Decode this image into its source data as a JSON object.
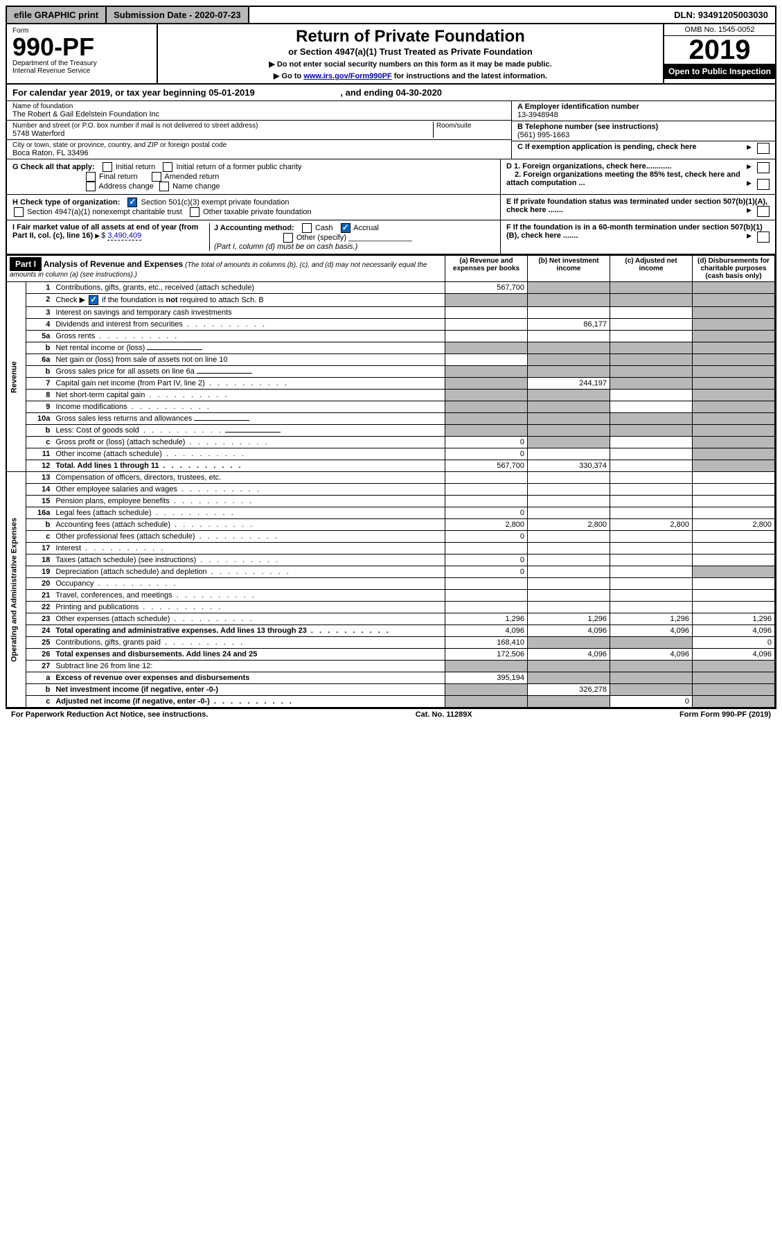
{
  "topbar": {
    "efile": "efile GRAPHIC print",
    "submission": "Submission Date - 2020-07-23",
    "dln": "DLN: 93491205003030"
  },
  "header": {
    "form_label": "Form",
    "form_number": "990-PF",
    "dept": "Department of the Treasury",
    "irs": "Internal Revenue Service",
    "title": "Return of Private Foundation",
    "subtitle": "or Section 4947(a)(1) Trust Treated as Private Foundation",
    "note1": "▶ Do not enter social security numbers on this form as it may be made public.",
    "note2_prefix": "▶ Go to ",
    "note2_link": "www.irs.gov/Form990PF",
    "note2_suffix": " for instructions and the latest information.",
    "omb": "OMB No. 1545-0052",
    "year": "2019",
    "open_public": "Open to Public Inspection"
  },
  "cal_year": {
    "prefix": "For calendar year 2019, or tax year beginning ",
    "begin": "05-01-2019",
    "middle": ", and ending ",
    "end": "04-30-2020"
  },
  "foundation": {
    "name_label": "Name of foundation",
    "name": "The Robert & Gail Edelstein Foundation Inc",
    "address_label": "Number and street (or P.O. box number if mail is not delivered to street address)",
    "room_label": "Room/suite",
    "address": "5748 Waterford",
    "city_label": "City or town, state or province, country, and ZIP or foreign postal code",
    "city": "Boca Raton, FL  33496",
    "ein_label": "A Employer identification number",
    "ein": "13-3948948",
    "phone_label": "B Telephone number (see instructions)",
    "phone": "(561) 995-1663",
    "c_label": "C If exemption application is pending, check here",
    "d1": "D 1. Foreign organizations, check here............",
    "d2": "2. Foreign organizations meeting the 85% test, check here and attach computation ...",
    "e_label": "E  If private foundation status was terminated under section 507(b)(1)(A), check here .......",
    "f_label": "F  If the foundation is in a 60-month termination under section 507(b)(1)(B), check here ......."
  },
  "checks": {
    "g_label": "G Check all that apply:",
    "initial": "Initial return",
    "initial_former": "Initial return of a former public charity",
    "final": "Final return",
    "amended": "Amended return",
    "address": "Address change",
    "name_change": "Name change",
    "h_label": "H Check type of organization:",
    "h_501c3": "Section 501(c)(3) exempt private foundation",
    "h_4947": "Section 4947(a)(1) nonexempt charitable trust",
    "h_other": "Other taxable private foundation",
    "i_label": "I Fair market value of all assets at end of year (from Part II, col. (c), line 16)",
    "i_value": "3,490,409",
    "j_label": "J Accounting method:",
    "j_cash": "Cash",
    "j_accrual": "Accrual",
    "j_other": "Other (specify)",
    "j_note": "(Part I, column (d) must be on cash basis.)"
  },
  "part1": {
    "label": "Part I",
    "title": "Analysis of Revenue and Expenses",
    "title_note": "(The total of amounts in columns (b), (c), and (d) may not necessarily equal the amounts in column (a) (see instructions).)",
    "col_a": "(a)   Revenue and expenses per books",
    "col_b": "(b)  Net investment income",
    "col_c": "(c)  Adjusted net income",
    "col_d": "(d)  Disbursements for charitable purposes (cash basis only)",
    "revenue_label": "Revenue",
    "expenses_label": "Operating and Administrative Expenses"
  },
  "rows": [
    {
      "n": "1",
      "desc": "Contributions, gifts, grants, etc., received (attach schedule)",
      "a": "567,700",
      "b": "",
      "c": "",
      "d": "",
      "gray": [
        "b",
        "c",
        "d"
      ]
    },
    {
      "n": "2",
      "desc": "Check ▶ ☑ if the foundation is not required to attach Sch. B",
      "a": "",
      "b": "",
      "c": "",
      "d": "",
      "gray": [
        "a",
        "b",
        "c",
        "d"
      ],
      "bold_not": true
    },
    {
      "n": "3",
      "desc": "Interest on savings and temporary cash investments",
      "a": "",
      "b": "",
      "c": "",
      "d": "",
      "gray": [
        "d"
      ]
    },
    {
      "n": "4",
      "desc": "Dividends and interest from securities",
      "a": "",
      "b": "86,177",
      "c": "",
      "d": "",
      "gray": [
        "d"
      ],
      "dots": true
    },
    {
      "n": "5a",
      "desc": "Gross rents",
      "a": "",
      "b": "",
      "c": "",
      "d": "",
      "gray": [
        "d"
      ],
      "dots": true
    },
    {
      "n": "b",
      "desc": "Net rental income or (loss)",
      "a": "",
      "b": "",
      "c": "",
      "d": "",
      "gray": [
        "a",
        "b",
        "c",
        "d"
      ],
      "inline": true
    },
    {
      "n": "6a",
      "desc": "Net gain or (loss) from sale of assets not on line 10",
      "a": "",
      "b": "",
      "c": "",
      "d": "",
      "gray": [
        "b",
        "c",
        "d"
      ]
    },
    {
      "n": "b",
      "desc": "Gross sales price for all assets on line 6a",
      "a": "",
      "b": "",
      "c": "",
      "d": "",
      "gray": [
        "a",
        "b",
        "c",
        "d"
      ],
      "inline": true
    },
    {
      "n": "7",
      "desc": "Capital gain net income (from Part IV, line 2)",
      "a": "",
      "b": "244,197",
      "c": "",
      "d": "",
      "gray": [
        "a",
        "c",
        "d"
      ],
      "dots": true
    },
    {
      "n": "8",
      "desc": "Net short-term capital gain",
      "a": "",
      "b": "",
      "c": "",
      "d": "",
      "gray": [
        "a",
        "b",
        "d"
      ],
      "dots": true
    },
    {
      "n": "9",
      "desc": "Income modifications",
      "a": "",
      "b": "",
      "c": "",
      "d": "",
      "gray": [
        "a",
        "b",
        "d"
      ],
      "dots": true
    },
    {
      "n": "10a",
      "desc": "Gross sales less returns and allowances",
      "a": "",
      "b": "",
      "c": "",
      "d": "",
      "gray": [
        "a",
        "b",
        "c",
        "d"
      ],
      "inline": true
    },
    {
      "n": "b",
      "desc": "Less: Cost of goods sold",
      "a": "",
      "b": "",
      "c": "",
      "d": "",
      "gray": [
        "a",
        "b",
        "c",
        "d"
      ],
      "inline": true,
      "dots": true
    },
    {
      "n": "c",
      "desc": "Gross profit or (loss) (attach schedule)",
      "a": "0",
      "b": "",
      "c": "",
      "d": "",
      "gray": [
        "b",
        "d"
      ],
      "dots": true
    },
    {
      "n": "11",
      "desc": "Other income (attach schedule)",
      "a": "0",
      "b": "",
      "c": "",
      "d": "",
      "gray": [
        "d"
      ],
      "dots": true
    },
    {
      "n": "12",
      "desc": "Total. Add lines 1 through 11",
      "a": "567,700",
      "b": "330,374",
      "c": "",
      "d": "",
      "gray": [
        "d"
      ],
      "bold": true,
      "dots": true
    },
    {
      "n": "13",
      "desc": "Compensation of officers, directors, trustees, etc.",
      "a": "",
      "b": "",
      "c": "",
      "d": ""
    },
    {
      "n": "14",
      "desc": "Other employee salaries and wages",
      "a": "",
      "b": "",
      "c": "",
      "d": "",
      "dots": true
    },
    {
      "n": "15",
      "desc": "Pension plans, employee benefits",
      "a": "",
      "b": "",
      "c": "",
      "d": "",
      "dots": true
    },
    {
      "n": "16a",
      "desc": "Legal fees (attach schedule)",
      "a": "0",
      "b": "",
      "c": "",
      "d": "",
      "dots": true
    },
    {
      "n": "b",
      "desc": "Accounting fees (attach schedule)",
      "a": "2,800",
      "b": "2,800",
      "c": "2,800",
      "d": "2,800",
      "dots": true
    },
    {
      "n": "c",
      "desc": "Other professional fees (attach schedule)",
      "a": "0",
      "b": "",
      "c": "",
      "d": "",
      "dots": true
    },
    {
      "n": "17",
      "desc": "Interest",
      "a": "",
      "b": "",
      "c": "",
      "d": "",
      "dots": true
    },
    {
      "n": "18",
      "desc": "Taxes (attach schedule) (see instructions)",
      "a": "0",
      "b": "",
      "c": "",
      "d": "",
      "dots": true
    },
    {
      "n": "19",
      "desc": "Depreciation (attach schedule) and depletion",
      "a": "0",
      "b": "",
      "c": "",
      "d": "",
      "gray": [
        "d"
      ],
      "dots": true
    },
    {
      "n": "20",
      "desc": "Occupancy",
      "a": "",
      "b": "",
      "c": "",
      "d": "",
      "dots": true
    },
    {
      "n": "21",
      "desc": "Travel, conferences, and meetings",
      "a": "",
      "b": "",
      "c": "",
      "d": "",
      "dots": true
    },
    {
      "n": "22",
      "desc": "Printing and publications",
      "a": "",
      "b": "",
      "c": "",
      "d": "",
      "dots": true
    },
    {
      "n": "23",
      "desc": "Other expenses (attach schedule)",
      "a": "1,296",
      "b": "1,296",
      "c": "1,296",
      "d": "1,296",
      "dots": true
    },
    {
      "n": "24",
      "desc": "Total operating and administrative expenses. Add lines 13 through 23",
      "a": "4,096",
      "b": "4,096",
      "c": "4,096",
      "d": "4,096",
      "bold": true,
      "dots": true
    },
    {
      "n": "25",
      "desc": "Contributions, gifts, grants paid",
      "a": "168,410",
      "b": "",
      "c": "",
      "d": "0",
      "gray": [
        "b",
        "c"
      ],
      "dots": true
    },
    {
      "n": "26",
      "desc": "Total expenses and disbursements. Add lines 24 and 25",
      "a": "172,506",
      "b": "4,096",
      "c": "4,096",
      "d": "4,096",
      "bold": true
    },
    {
      "n": "27",
      "desc": "Subtract line 26 from line 12:",
      "a": "",
      "b": "",
      "c": "",
      "d": "",
      "gray": [
        "a",
        "b",
        "c",
        "d"
      ]
    },
    {
      "n": "a",
      "desc": "Excess of revenue over expenses and disbursements",
      "a": "395,194",
      "b": "",
      "c": "",
      "d": "",
      "gray": [
        "b",
        "c",
        "d"
      ],
      "bold": true
    },
    {
      "n": "b",
      "desc": "Net investment income (if negative, enter -0-)",
      "a": "",
      "b": "326,278",
      "c": "",
      "d": "",
      "gray": [
        "a",
        "c",
        "d"
      ],
      "bold": true
    },
    {
      "n": "c",
      "desc": "Adjusted net income (if negative, enter -0-)",
      "a": "",
      "b": "",
      "c": "0",
      "d": "",
      "gray": [
        "a",
        "b",
        "d"
      ],
      "bold": true,
      "dots": true
    }
  ],
  "footer": {
    "paperwork": "For Paperwork Reduction Act Notice, see instructions.",
    "cat": "Cat. No. 11289X",
    "form": "Form 990-PF (2019)"
  }
}
